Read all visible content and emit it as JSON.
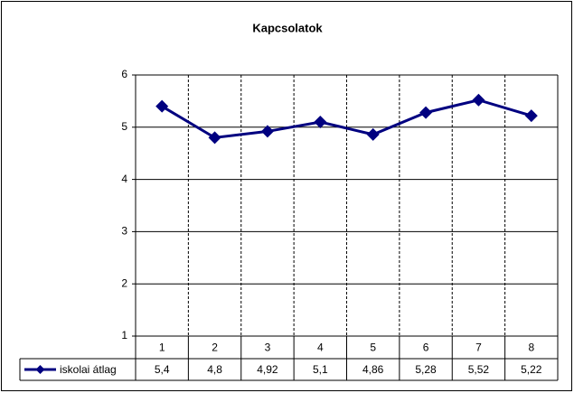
{
  "chart_data": {
    "type": "line",
    "title": "Kapcsolatok",
    "categories": [
      "1",
      "2",
      "3",
      "4",
      "5",
      "6",
      "7",
      "8"
    ],
    "series": [
      {
        "name": "iskolai átlag",
        "color": "#000080",
        "values": [
          5.4,
          4.8,
          4.92,
          5.1,
          4.86,
          5.28,
          5.52,
          5.22
        ],
        "value_labels": [
          "5,4",
          "4,8",
          "4,92",
          "5,1",
          "4,86",
          "5,28",
          "5,52",
          "5,22"
        ]
      }
    ],
    "ylim": [
      1,
      6
    ],
    "yticks": [
      1,
      2,
      3,
      4,
      5,
      6
    ],
    "grid": true,
    "data_table": true
  }
}
